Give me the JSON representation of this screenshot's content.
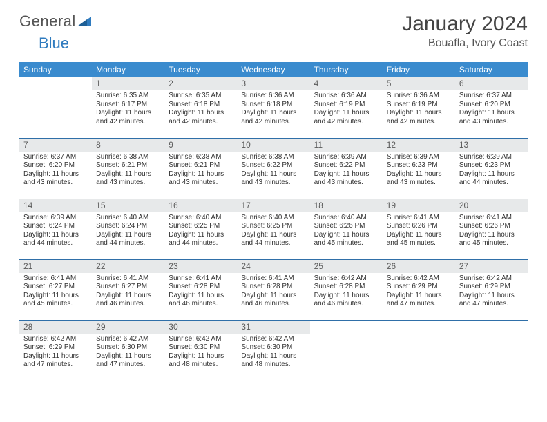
{
  "brand": {
    "word1": "General",
    "word2": "Blue"
  },
  "title": "January 2024",
  "location": "Bouafla, Ivory Coast",
  "colors": {
    "header_bg": "#3a8bce",
    "header_text": "#ffffff",
    "daynum_bg": "#e7e9ea",
    "row_border": "#2f6fa8",
    "brand_blue": "#2f7bbf"
  },
  "weekdays": [
    "Sunday",
    "Monday",
    "Tuesday",
    "Wednesday",
    "Thursday",
    "Friday",
    "Saturday"
  ],
  "layout": {
    "first_weekday_index": 1,
    "days_in_month": 31
  },
  "days": {
    "1": {
      "sunrise": "6:35 AM",
      "sunset": "6:17 PM",
      "daylight": "11 hours and 42 minutes."
    },
    "2": {
      "sunrise": "6:35 AM",
      "sunset": "6:18 PM",
      "daylight": "11 hours and 42 minutes."
    },
    "3": {
      "sunrise": "6:36 AM",
      "sunset": "6:18 PM",
      "daylight": "11 hours and 42 minutes."
    },
    "4": {
      "sunrise": "6:36 AM",
      "sunset": "6:19 PM",
      "daylight": "11 hours and 42 minutes."
    },
    "5": {
      "sunrise": "6:36 AM",
      "sunset": "6:19 PM",
      "daylight": "11 hours and 42 minutes."
    },
    "6": {
      "sunrise": "6:37 AM",
      "sunset": "6:20 PM",
      "daylight": "11 hours and 43 minutes."
    },
    "7": {
      "sunrise": "6:37 AM",
      "sunset": "6:20 PM",
      "daylight": "11 hours and 43 minutes."
    },
    "8": {
      "sunrise": "6:38 AM",
      "sunset": "6:21 PM",
      "daylight": "11 hours and 43 minutes."
    },
    "9": {
      "sunrise": "6:38 AM",
      "sunset": "6:21 PM",
      "daylight": "11 hours and 43 minutes."
    },
    "10": {
      "sunrise": "6:38 AM",
      "sunset": "6:22 PM",
      "daylight": "11 hours and 43 minutes."
    },
    "11": {
      "sunrise": "6:39 AM",
      "sunset": "6:22 PM",
      "daylight": "11 hours and 43 minutes."
    },
    "12": {
      "sunrise": "6:39 AM",
      "sunset": "6:23 PM",
      "daylight": "11 hours and 43 minutes."
    },
    "13": {
      "sunrise": "6:39 AM",
      "sunset": "6:23 PM",
      "daylight": "11 hours and 44 minutes."
    },
    "14": {
      "sunrise": "6:39 AM",
      "sunset": "6:24 PM",
      "daylight": "11 hours and 44 minutes."
    },
    "15": {
      "sunrise": "6:40 AM",
      "sunset": "6:24 PM",
      "daylight": "11 hours and 44 minutes."
    },
    "16": {
      "sunrise": "6:40 AM",
      "sunset": "6:25 PM",
      "daylight": "11 hours and 44 minutes."
    },
    "17": {
      "sunrise": "6:40 AM",
      "sunset": "6:25 PM",
      "daylight": "11 hours and 44 minutes."
    },
    "18": {
      "sunrise": "6:40 AM",
      "sunset": "6:26 PM",
      "daylight": "11 hours and 45 minutes."
    },
    "19": {
      "sunrise": "6:41 AM",
      "sunset": "6:26 PM",
      "daylight": "11 hours and 45 minutes."
    },
    "20": {
      "sunrise": "6:41 AM",
      "sunset": "6:26 PM",
      "daylight": "11 hours and 45 minutes."
    },
    "21": {
      "sunrise": "6:41 AM",
      "sunset": "6:27 PM",
      "daylight": "11 hours and 45 minutes."
    },
    "22": {
      "sunrise": "6:41 AM",
      "sunset": "6:27 PM",
      "daylight": "11 hours and 46 minutes."
    },
    "23": {
      "sunrise": "6:41 AM",
      "sunset": "6:28 PM",
      "daylight": "11 hours and 46 minutes."
    },
    "24": {
      "sunrise": "6:41 AM",
      "sunset": "6:28 PM",
      "daylight": "11 hours and 46 minutes."
    },
    "25": {
      "sunrise": "6:42 AM",
      "sunset": "6:28 PM",
      "daylight": "11 hours and 46 minutes."
    },
    "26": {
      "sunrise": "6:42 AM",
      "sunset": "6:29 PM",
      "daylight": "11 hours and 47 minutes."
    },
    "27": {
      "sunrise": "6:42 AM",
      "sunset": "6:29 PM",
      "daylight": "11 hours and 47 minutes."
    },
    "28": {
      "sunrise": "6:42 AM",
      "sunset": "6:29 PM",
      "daylight": "11 hours and 47 minutes."
    },
    "29": {
      "sunrise": "6:42 AM",
      "sunset": "6:30 PM",
      "daylight": "11 hours and 47 minutes."
    },
    "30": {
      "sunrise": "6:42 AM",
      "sunset": "6:30 PM",
      "daylight": "11 hours and 48 minutes."
    },
    "31": {
      "sunrise": "6:42 AM",
      "sunset": "6:30 PM",
      "daylight": "11 hours and 48 minutes."
    }
  },
  "labels": {
    "sunrise_prefix": "Sunrise: ",
    "sunset_prefix": "Sunset: ",
    "daylight_prefix": "Daylight: "
  }
}
